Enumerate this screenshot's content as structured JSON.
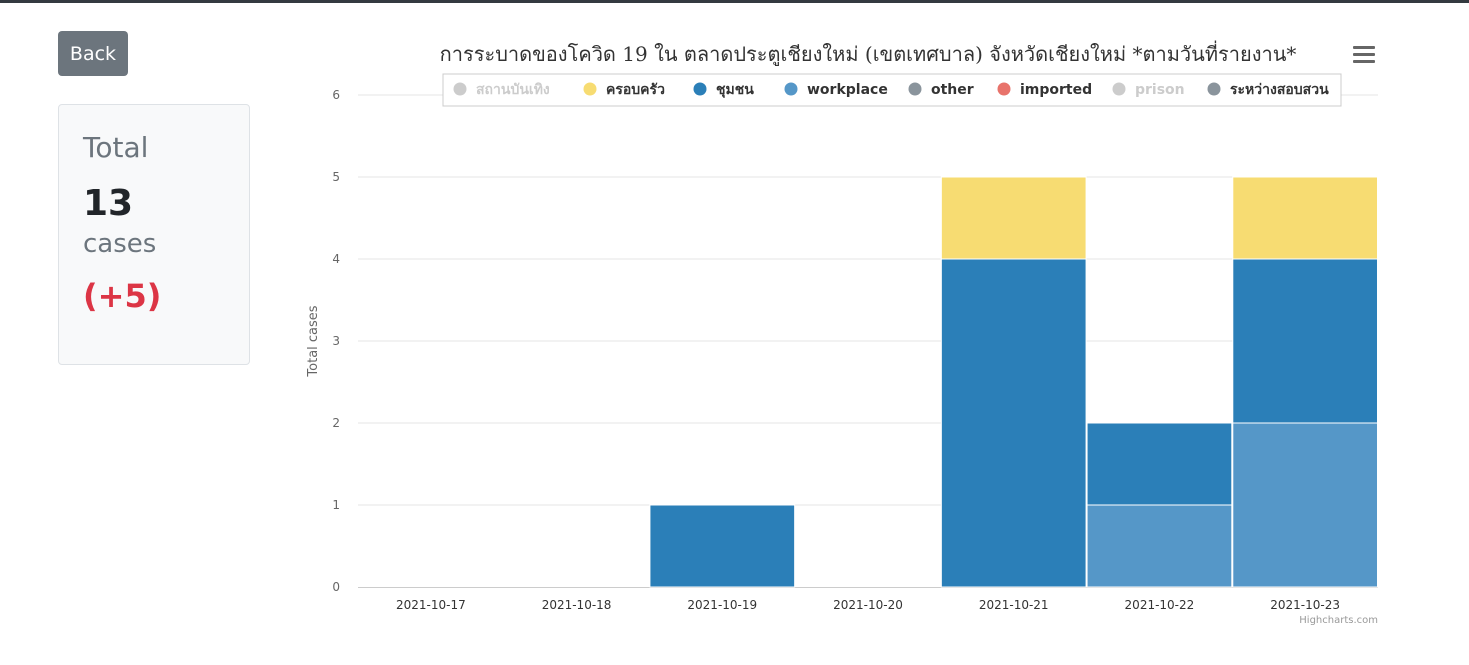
{
  "back_button": {
    "label": "Back"
  },
  "summary": {
    "label": "Total",
    "value": "13",
    "unit": "cases",
    "delta": "(+5)"
  },
  "credits": "Highcharts.com",
  "chart_data": {
    "type": "bar",
    "stacked": true,
    "title": "การระบาดของโควิด 19 ใน ตลาดประตูเชียงใหม่ (เขตเทศบาล) จังหวัดเชียงใหม่ *ตามวันที่รายงาน*",
    "xlabel": "",
    "ylabel": "Total cases",
    "ylim": [
      0,
      6
    ],
    "yticks": [
      "0",
      "1",
      "2",
      "3",
      "4",
      "5",
      "6"
    ],
    "grid": true,
    "legend_position": "top",
    "categories": [
      "2021-10-17",
      "2021-10-18",
      "2021-10-19",
      "2021-10-20",
      "2021-10-21",
      "2021-10-22",
      "2021-10-23"
    ],
    "series": [
      {
        "name": "สถานบันเทิง",
        "color": "#cccccc",
        "visible": false,
        "values": [
          0,
          0,
          0,
          0,
          0,
          0,
          0
        ]
      },
      {
        "name": "ครอบครัว",
        "color": "#f7dc72",
        "visible": true,
        "values": [
          0,
          0,
          0,
          0,
          1,
          0,
          1
        ]
      },
      {
        "name": "ชุมชน",
        "color": "#2b7fb8",
        "visible": true,
        "values": [
          0,
          0,
          1,
          0,
          4,
          1,
          2
        ]
      },
      {
        "name": "workplace",
        "color": "#5597c8",
        "visible": true,
        "values": [
          0,
          0,
          0,
          0,
          0,
          1,
          2
        ]
      },
      {
        "name": "other",
        "color": "#8a949c",
        "visible": true,
        "values": [
          0,
          0,
          0,
          0,
          0,
          0,
          0
        ]
      },
      {
        "name": "imported",
        "color": "#e8736b",
        "visible": true,
        "values": [
          0,
          0,
          0,
          0,
          0,
          0,
          0
        ]
      },
      {
        "name": "prison",
        "color": "#cccccc",
        "visible": false,
        "values": [
          0,
          0,
          0,
          0,
          0,
          0,
          0
        ]
      },
      {
        "name": "ระหว่างสอบสวน",
        "color": "#8a949c",
        "visible": true,
        "values": [
          0,
          0,
          0,
          0,
          0,
          0,
          0
        ]
      }
    ]
  }
}
